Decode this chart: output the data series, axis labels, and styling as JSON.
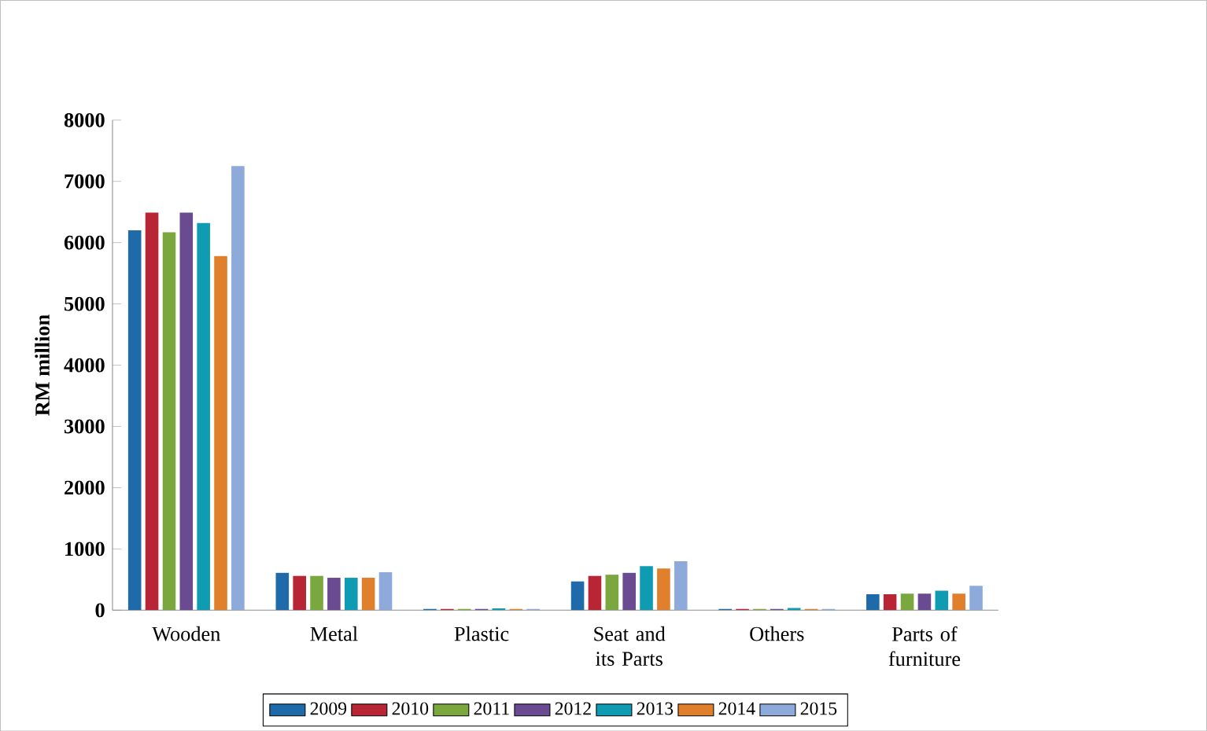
{
  "chart_data": {
    "type": "bar",
    "ylabel": "RM million",
    "categories": [
      "Wooden",
      "Metal",
      "Plastic",
      "Seat and its Parts",
      "Others",
      "Parts of furniture"
    ],
    "series": [
      {
        "name": "2009",
        "color": "#1f6aa8",
        "values": [
          6200,
          610,
          20,
          470,
          20,
          260
        ]
      },
      {
        "name": "2010",
        "color": "#b82535",
        "values": [
          6490,
          560,
          20,
          560,
          20,
          260
        ]
      },
      {
        "name": "2011",
        "color": "#7aa83e",
        "values": [
          6170,
          560,
          20,
          580,
          20,
          270
        ]
      },
      {
        "name": "2012",
        "color": "#6a4b92",
        "values": [
          6490,
          530,
          20,
          610,
          20,
          270
        ]
      },
      {
        "name": "2013",
        "color": "#0f9bb2",
        "values": [
          6320,
          530,
          30,
          720,
          35,
          320
        ]
      },
      {
        "name": "2014",
        "color": "#e07f2c",
        "values": [
          5780,
          530,
          20,
          680,
          20,
          270
        ]
      },
      {
        "name": "2015",
        "color": "#8eaadb",
        "values": [
          7250,
          620,
          20,
          800,
          20,
          400
        ]
      }
    ],
    "ylim": [
      0,
      8000
    ],
    "yticks": [
      0,
      1000,
      2000,
      3000,
      4000,
      5000,
      6000,
      7000,
      8000
    ],
    "grid": false,
    "legend": "bottom"
  }
}
